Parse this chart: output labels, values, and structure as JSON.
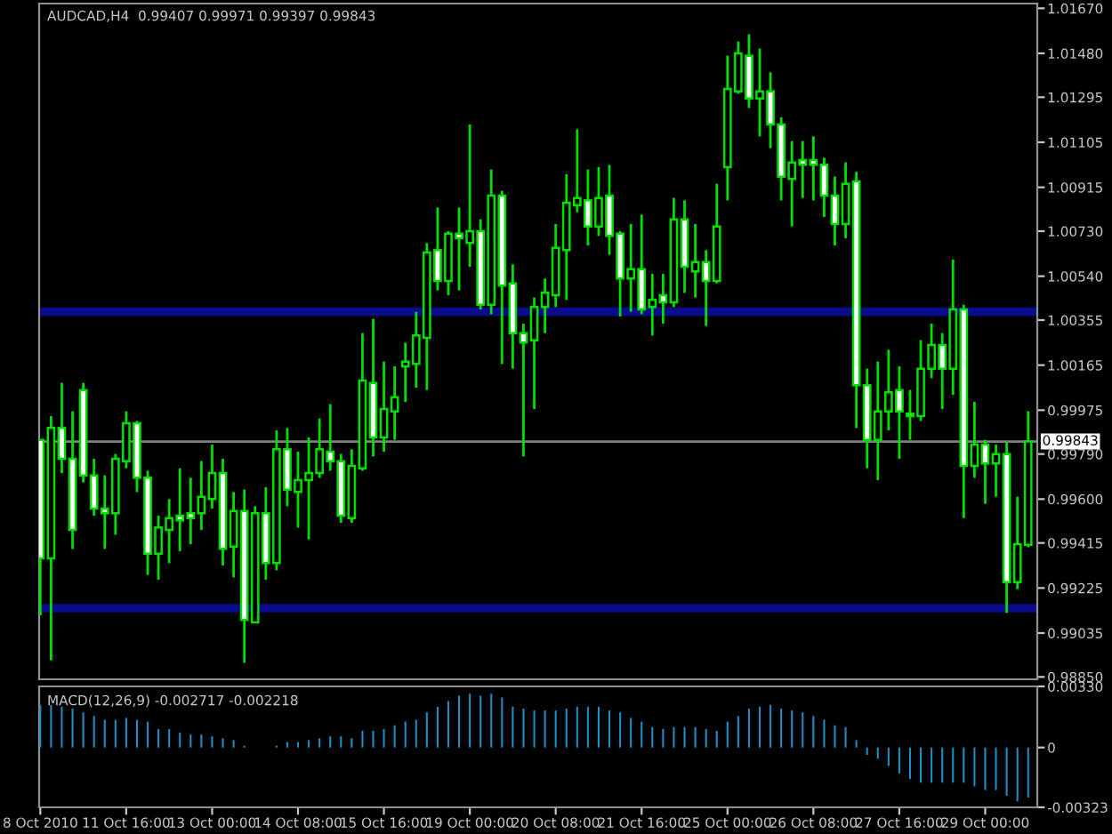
{
  "chart_data": [
    {
      "type": "candlestick",
      "title": "AUDCAD,H4  0.99407 0.99971 0.99397 0.99843",
      "grid": false,
      "color": "#00e000",
      "categories": [
        null,
        null,
        null,
        null,
        null,
        null,
        null,
        null,
        null,
        null,
        null,
        null,
        null,
        null,
        null,
        null,
        null,
        null,
        null,
        null,
        null,
        null,
        null,
        null,
        null,
        null,
        null,
        null,
        null,
        null,
        null,
        null,
        null,
        null,
        null,
        null,
        null,
        null,
        null,
        null,
        null,
        null,
        null,
        null,
        null,
        null,
        null,
        null,
        null,
        null,
        null,
        null,
        null,
        null,
        null,
        null,
        null,
        null,
        null,
        null,
        null,
        null,
        null,
        null,
        null,
        null,
        null,
        null,
        null,
        null,
        null,
        null,
        null,
        null,
        null,
        null,
        null,
        null,
        null,
        null,
        null,
        null,
        null,
        null,
        null,
        null,
        null,
        null,
        null,
        null,
        null,
        null,
        null
      ],
      "ohlc": [
        [
          0.9985,
          0.9985,
          0.9911,
          0.9935
        ],
        [
          0.9935,
          0.9995,
          0.9892,
          0.999
        ],
        [
          0.999,
          1.0009,
          0.9971,
          0.9977
        ],
        [
          0.9977,
          0.9997,
          0.9939,
          0.9947
        ],
        [
          1.0006,
          1.0009,
          0.9967,
          0.997
        ],
        [
          0.997,
          0.9977,
          0.9953,
          0.9956
        ],
        [
          0.9956,
          0.997,
          0.9939,
          0.9954
        ],
        [
          0.9954,
          0.9979,
          0.9945,
          0.9977
        ],
        [
          0.9976,
          0.9997,
          0.9973,
          0.9992
        ],
        [
          0.9992,
          0.9993,
          0.9963,
          0.9969
        ],
        [
          0.9969,
          0.9972,
          0.9928,
          0.9937
        ],
        [
          0.9937,
          0.9953,
          0.9926,
          0.9948
        ],
        [
          0.9947,
          0.996,
          0.9933,
          0.9952
        ],
        [
          0.9953,
          0.9973,
          0.9938,
          0.9951
        ],
        [
          0.9954,
          0.9969,
          0.9941,
          0.9952
        ],
        [
          0.9954,
          0.9976,
          0.9947,
          0.9961
        ],
        [
          0.996,
          0.9983,
          0.9956,
          0.9971
        ],
        [
          0.9971,
          0.9977,
          0.9932,
          0.9939
        ],
        [
          0.994,
          0.9963,
          0.9927,
          0.9955
        ],
        [
          0.9955,
          0.9964,
          0.9891,
          0.9909
        ],
        [
          0.9908,
          0.9957,
          0.9908,
          0.9954
        ],
        [
          0.9954,
          0.9965,
          0.9926,
          0.9933
        ],
        [
          0.9933,
          0.9989,
          0.993,
          0.9981
        ],
        [
          0.9981,
          0.999,
          0.9957,
          0.9964
        ],
        [
          0.9963,
          0.998,
          0.9948,
          0.9968
        ],
        [
          0.9968,
          0.9986,
          0.9943,
          0.9971
        ],
        [
          0.9971,
          0.9994,
          0.9969,
          0.9981
        ],
        [
          0.998,
          1.0,
          0.9972,
          0.9976
        ],
        [
          0.9976,
          0.9979,
          0.995,
          0.9953
        ],
        [
          0.9952,
          0.9981,
          0.995,
          0.9974
        ],
        [
          0.9973,
          1.003,
          0.9972,
          1.001
        ],
        [
          1.0009,
          1.0036,
          0.9978,
          0.9986
        ],
        [
          0.9986,
          1.0018,
          0.998,
          0.9998
        ],
        [
          0.9997,
          1.0016,
          0.9985,
          1.0003
        ],
        [
          1.0016,
          1.0026,
          1.0001,
          1.0018
        ],
        [
          1.0017,
          1.0039,
          1.0007,
          1.0029
        ],
        [
          1.0028,
          1.0068,
          1.0006,
          1.0064
        ],
        [
          1.0065,
          1.0083,
          1.0048,
          1.0052
        ],
        [
          1.0052,
          1.0073,
          1.0046,
          1.0072
        ],
        [
          1.0072,
          1.0083,
          1.0048,
          1.007
        ],
        [
          1.0068,
          1.0118,
          1.0058,
          1.0073
        ],
        [
          1.0073,
          1.0078,
          1.004,
          1.0042
        ],
        [
          1.0042,
          1.0099,
          1.0038,
          1.0088
        ],
        [
          1.0088,
          1.009,
          1.0017,
          1.005
        ],
        [
          1.0051,
          1.0059,
          1.0015,
          1.003
        ],
        [
          1.003,
          1.0034,
          0.9978,
          1.0026
        ],
        [
          1.0027,
          1.0045,
          0.9998,
          1.0041
        ],
        [
          1.0041,
          1.0053,
          1.003,
          1.0047
        ],
        [
          1.0046,
          1.0076,
          1.0041,
          1.0066
        ],
        [
          1.0065,
          1.0097,
          1.0044,
          1.0085
        ],
        [
          1.0084,
          1.0116,
          1.0081,
          1.0087
        ],
        [
          1.0086,
          1.0099,
          1.0067,
          1.0075
        ],
        [
          1.0075,
          1.01,
          1.0071,
          1.0087
        ],
        [
          1.0088,
          1.0101,
          1.0063,
          1.0071
        ],
        [
          1.0072,
          1.0073,
          1.0037,
          1.0053
        ],
        [
          1.0053,
          1.0076,
          1.0039,
          1.0057
        ],
        [
          1.0057,
          1.008,
          1.0038,
          1.004
        ],
        [
          1.0041,
          1.0055,
          1.0029,
          1.0044
        ],
        [
          1.0046,
          1.0055,
          1.0034,
          1.0043
        ],
        [
          1.0043,
          1.0087,
          1.0041,
          1.0078
        ],
        [
          1.0078,
          1.0086,
          1.0047,
          1.0058
        ],
        [
          1.0056,
          1.0076,
          1.0045,
          1.006
        ],
        [
          1.006,
          1.0065,
          1.0033,
          1.0052
        ],
        [
          1.0052,
          1.0093,
          1.0051,
          1.0075
        ],
        [
          1.01,
          1.0147,
          1.0086,
          1.0133
        ],
        [
          1.0132,
          1.0153,
          1.0131,
          1.0148
        ],
        [
          1.0147,
          1.0156,
          1.0125,
          1.0129
        ],
        [
          1.0129,
          1.015,
          1.0113,
          1.0132
        ],
        [
          1.0132,
          1.014,
          1.0108,
          1.0118
        ],
        [
          1.0118,
          1.0121,
          1.0086,
          1.0096
        ],
        [
          1.0095,
          1.0111,
          1.0075,
          1.0102
        ],
        [
          1.0103,
          1.0111,
          1.0087,
          1.0101
        ],
        [
          1.0103,
          1.0113,
          1.0086,
          1.0101
        ],
        [
          1.0101,
          1.0104,
          1.0079,
          1.0088
        ],
        [
          1.0088,
          1.0096,
          1.0067,
          1.0076
        ],
        [
          1.0076,
          1.0102,
          1.007,
          1.0093
        ],
        [
          1.0094,
          1.0098,
          0.999,
          1.0008
        ],
        [
          1.0008,
          1.0015,
          0.9973,
          0.9985
        ],
        [
          0.9985,
          1.0018,
          0.9968,
          0.9997
        ],
        [
          0.9997,
          1.0023,
          0.9989,
          1.0005
        ],
        [
          1.0006,
          1.0016,
          0.9977,
          0.9997
        ],
        [
          0.9996,
          1.0006,
          0.9985,
          0.9995
        ],
        [
          0.9995,
          1.0027,
          0.9993,
          1.0015
        ],
        [
          1.0015,
          1.0034,
          1.0011,
          1.0025
        ],
        [
          1.0025,
          1.003,
          0.9998,
          1.0015
        ],
        [
          1.0015,
          1.0061,
          1.0004,
          1.004
        ],
        [
          1.004,
          1.0042,
          0.9952,
          0.9974
        ],
        [
          0.9974,
          1.0001,
          0.9969,
          0.9983
        ],
        [
          0.9983,
          0.9985,
          0.9958,
          0.9975
        ],
        [
          0.9975,
          0.9983,
          0.9961,
          0.9979
        ],
        [
          0.9979,
          0.9984,
          0.9912,
          0.9925
        ],
        [
          0.9925,
          0.9961,
          0.9922,
          0.9941
        ],
        [
          0.99407,
          0.99971,
          0.99397,
          0.99843
        ]
      ],
      "colors": [
        "#ffffff",
        "#000000",
        "#ffffff",
        "#ffffff",
        "#ffffff",
        "#ffffff",
        "#ffffff",
        "#000000",
        "#000000",
        "#ffffff",
        "#ffffff",
        "#000000",
        "#000000",
        "#ffffff",
        "#ffffff",
        "#000000",
        "#000000",
        "#ffffff",
        "#000000",
        "#ffffff",
        "#000000",
        "#ffffff",
        "#000000",
        "#ffffff",
        "#000000",
        "#000000",
        "#000000",
        "#ffffff",
        "#ffffff",
        "#000000",
        "#000000",
        "#ffffff",
        "#000000",
        "#000000",
        "#000000",
        "#000000",
        "#000000",
        "#ffffff",
        "#000000",
        "#ffffff",
        "#000000",
        "#ffffff",
        "#000000",
        "#ffffff",
        "#ffffff",
        "#ffffff",
        "#000000",
        "#000000",
        "#000000",
        "#000000",
        "#000000",
        "#ffffff",
        "#000000",
        "#ffffff",
        "#ffffff",
        "#000000",
        "#ffffff",
        "#000000",
        "#ffffff",
        "#000000",
        "#ffffff",
        "#000000",
        "#ffffff",
        "#000000",
        "#000000",
        "#000000",
        "#ffffff",
        "#000000",
        "#ffffff",
        "#ffffff",
        "#000000",
        "#ffffff",
        "#ffffff",
        "#ffffff",
        "#ffffff",
        "#000000",
        "#ffffff",
        "#ffffff",
        "#000000",
        "#000000",
        "#ffffff",
        "#ffffff",
        "#000000",
        "#000000",
        "#ffffff",
        "#000000",
        "#ffffff",
        "#000000",
        "#ffffff",
        "#000000",
        "#ffffff",
        "#000000",
        "#000000"
      ],
      "ylim": [
        0.9884,
        1.0169
      ],
      "yticks": [
        {
          "value": 1.0167,
          "label": "1.01670"
        },
        {
          "value": 1.0148,
          "label": "1.01480"
        },
        {
          "value": 1.01295,
          "label": "1.01295"
        },
        {
          "value": 1.01105,
          "label": "1.01105"
        },
        {
          "value": 1.00915,
          "label": "1.00915"
        },
        {
          "value": 1.0073,
          "label": "1.00730"
        },
        {
          "value": 1.0054,
          "label": "1.00540"
        },
        {
          "value": 1.00355,
          "label": "1.00355"
        },
        {
          "value": 1.00165,
          "label": "1.00165"
        },
        {
          "value": 0.99975,
          "label": "0.99975"
        },
        {
          "value": 0.9979,
          "label": "0.99790"
        },
        {
          "value": 0.996,
          "label": "0.99600"
        },
        {
          "value": 0.99415,
          "label": "0.99415"
        },
        {
          "value": 0.99225,
          "label": "0.99225"
        },
        {
          "value": 0.99035,
          "label": "0.99035"
        },
        {
          "value": 0.9885,
          "label": "0.98850"
        }
      ],
      "ref_lines": [
        {
          "axis": "y",
          "value": 1.0039,
          "color": "#0a0a8c"
        },
        {
          "axis": "y",
          "value": 0.9914,
          "color": "#0a0a8c"
        },
        {
          "axis": "y",
          "value": 0.99843,
          "label": "0.99843",
          "color": "#808080"
        }
      ]
    },
    {
      "type": "bar",
      "title": "MACD(12,26,9) -0.002717 -0.002218",
      "grid": false,
      "color": "#1e8fc8",
      "categories": [
        "8 Oct 2010",
        null,
        null,
        null,
        null,
        null,
        null,
        null,
        "11 Oct 16:00",
        null,
        null,
        null,
        null,
        null,
        null,
        null,
        "13 Oct 00:00",
        null,
        null,
        null,
        null,
        null,
        null,
        null,
        "14 Oct 08:00",
        null,
        null,
        null,
        null,
        null,
        null,
        null,
        "15 Oct 16:00",
        null,
        null,
        null,
        null,
        null,
        null,
        null,
        "19 Oct 00:00",
        null,
        null,
        null,
        null,
        null,
        null,
        null,
        "20 Oct 08:00",
        null,
        null,
        null,
        null,
        null,
        null,
        null,
        "21 Oct 16:00",
        null,
        null,
        null,
        null,
        null,
        null,
        null,
        "25 Oct 00:00",
        null,
        null,
        null,
        null,
        null,
        null,
        null,
        "26 Oct 08:00",
        null,
        null,
        null,
        null,
        null,
        null,
        null,
        "27 Oct 16:00",
        null,
        null,
        null,
        null,
        null,
        null,
        null,
        "29 Oct 00:00",
        null,
        null,
        null,
        null
      ],
      "values": [
        0.0023,
        0.0023,
        0.0022,
        0.0021,
        0.0019,
        0.0017,
        0.0015,
        0.0015,
        0.0016,
        0.0015,
        0.0014,
        0.001,
        0.001,
        0.0008,
        0.0007,
        0.0007,
        0.0006,
        0.0005,
        0.0004,
        0.0001,
        0,
        0,
        0.0001,
        0.0003,
        0.0003,
        0.0004,
        0.0005,
        0.0006,
        0.0006,
        0.0005,
        0.0009,
        0.0009,
        0.001,
        0.0012,
        0.0014,
        0.0015,
        0.0019,
        0.0022,
        0.0025,
        0.0028,
        0.0029,
        0.0028,
        0.0029,
        0.0027,
        0.0022,
        0.0021,
        0.002,
        0.002,
        0.002,
        0.0021,
        0.0022,
        0.0022,
        0.0022,
        0.002,
        0.0019,
        0.0016,
        0.0014,
        0.0011,
        0.001,
        0.0011,
        0.0011,
        0.0011,
        0.001,
        0.0009,
        0.0014,
        0.0017,
        0.0021,
        0.0022,
        0.0023,
        0.0021,
        0.002,
        0.0019,
        0.0017,
        0.0015,
        0.0012,
        0.0011,
        0.0004,
        -0.0004,
        -0.0006,
        -0.001,
        -0.0014,
        -0.0017,
        -0.0019,
        -0.0019,
        -0.0019,
        -0.0019,
        -0.0019,
        -0.0021,
        -0.0023,
        -0.0023,
        -0.0026,
        -0.0029,
        -0.0027
      ],
      "ylim": [
        -0.00323,
        0.0033
      ],
      "yticks": [
        {
          "value": 0.0033,
          "label": "0.00330"
        },
        0,
        {
          "value": -0.00323,
          "label": "-0.00323"
        }
      ]
    }
  ]
}
